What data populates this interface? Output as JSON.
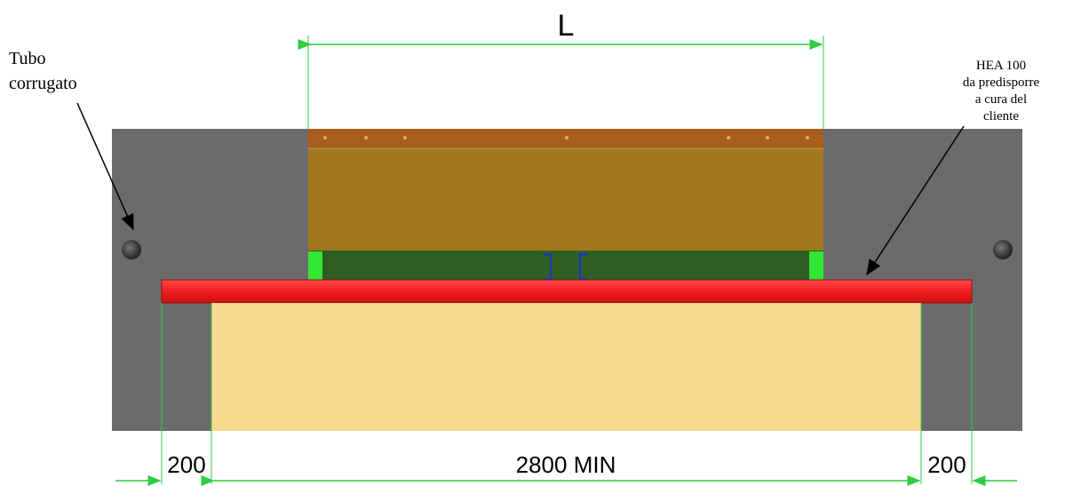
{
  "labels": {
    "tubo_line1": "Tubo",
    "tubo_line2": "corrugato",
    "hea_line1": "HEA 100",
    "hea_line2": "da predisporre",
    "hea_line3": "a cura del",
    "hea_line4": "cliente"
  },
  "dimensions": {
    "top": "L",
    "left": "200",
    "middle": "2800 MIN",
    "right": "200"
  },
  "colors": {
    "concrete": "#6b6b6b",
    "beam_red": "#f31d1d",
    "sand": "#f6da8e",
    "panel_brown": "#a2781f",
    "panel_top": "#a85d1e",
    "panel_green": "#2e5e22",
    "bracket_green": "#33e633",
    "dimension_line": "#2ecc40",
    "pipe": "#444444"
  }
}
